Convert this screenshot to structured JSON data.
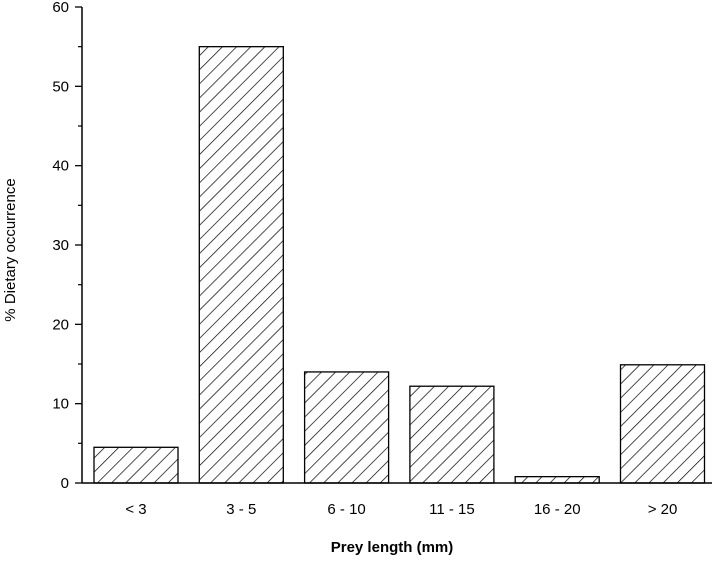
{
  "chart_data": {
    "type": "bar",
    "title": "",
    "xlabel": "Prey length (mm)",
    "ylabel": "% Dietary occurrence",
    "categories": [
      "< 3",
      "3 - 5",
      "6 - 10",
      "11 - 15",
      "16 - 20",
      "> 20"
    ],
    "values": [
      4.5,
      55,
      14,
      12.2,
      0.8,
      14.9
    ],
    "ylim": [
      0,
      60
    ],
    "yticks": [
      0,
      10,
      20,
      30,
      40,
      50,
      60
    ],
    "yminor_step": 5,
    "grid": false,
    "legend": "none",
    "bar_pattern": "diagonal-hatch",
    "colors": {
      "bar_fill": "#ffffff",
      "bar_stroke": "#000000",
      "hatch": "#000000",
      "axis": "#000000"
    }
  }
}
